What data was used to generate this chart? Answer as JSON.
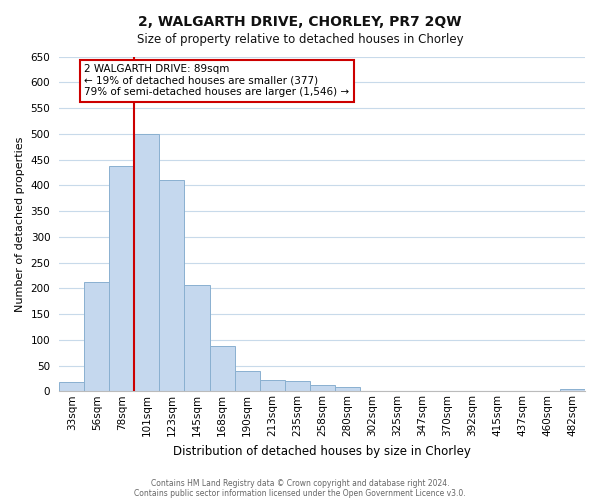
{
  "title": "2, WALGARTH DRIVE, CHORLEY, PR7 2QW",
  "subtitle": "Size of property relative to detached houses in Chorley",
  "xlabel": "Distribution of detached houses by size in Chorley",
  "ylabel": "Number of detached properties",
  "bar_labels": [
    "33sqm",
    "56sqm",
    "78sqm",
    "101sqm",
    "123sqm",
    "145sqm",
    "168sqm",
    "190sqm",
    "213sqm",
    "235sqm",
    "258sqm",
    "280sqm",
    "302sqm",
    "325sqm",
    "347sqm",
    "370sqm",
    "392sqm",
    "415sqm",
    "437sqm",
    "460sqm",
    "482sqm"
  ],
  "bar_values": [
    18,
    213,
    437,
    500,
    410,
    207,
    88,
    40,
    22,
    19,
    13,
    8,
    0,
    0,
    0,
    0,
    0,
    0,
    0,
    0,
    5
  ],
  "bar_color": "#c5d8ee",
  "bar_edge_color": "#8ab0d0",
  "vline_color": "#cc0000",
  "vline_x_index": 2.5,
  "annotation_text": "2 WALGARTH DRIVE: 89sqm\n← 19% of detached houses are smaller (377)\n79% of semi-detached houses are larger (1,546) →",
  "annotation_box_facecolor": "#ffffff",
  "annotation_box_edgecolor": "#cc0000",
  "ylim": [
    0,
    650
  ],
  "yticks": [
    0,
    50,
    100,
    150,
    200,
    250,
    300,
    350,
    400,
    450,
    500,
    550,
    600,
    650
  ],
  "footer1": "Contains HM Land Registry data © Crown copyright and database right 2024.",
  "footer2": "Contains public sector information licensed under the Open Government Licence v3.0.",
  "bg_color": "#ffffff",
  "grid_color": "#c8daea",
  "title_fontsize": 10,
  "subtitle_fontsize": 8.5,
  "ylabel_fontsize": 8,
  "xlabel_fontsize": 8.5,
  "tick_fontsize": 7.5,
  "footer_fontsize": 5.5,
  "annotation_fontsize": 7.5
}
